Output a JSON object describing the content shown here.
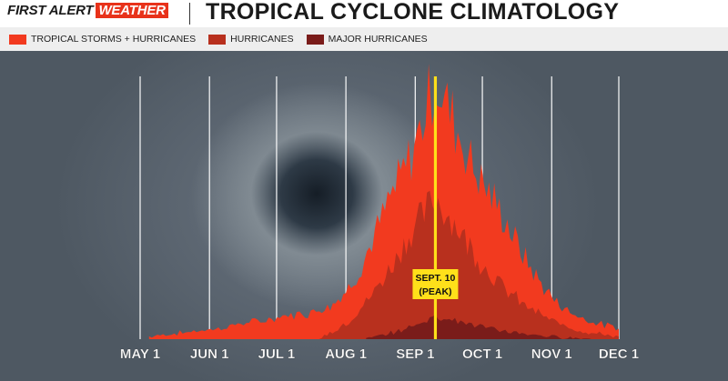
{
  "header": {
    "brand_first": "FIRST ALERT",
    "brand_second": "WEATHER",
    "title": "TROPICAL CYCLONE CLIMATOLOGY"
  },
  "legend": [
    {
      "label": "TROPICAL STORMS + HURRICANES",
      "color": "#f23a1f"
    },
    {
      "label": "HURRICANES",
      "color": "#b8301e"
    },
    {
      "label": "MAJOR HURRICANES",
      "color": "#7a1c1a"
    }
  ],
  "chart_data": {
    "type": "area",
    "title": "TROPICAL CYCLONE CLIMATOLOGY",
    "x_axis": "day of season",
    "tick_labels": [
      "MAY 1",
      "JUN 1",
      "JUL 1",
      "AUG 1",
      "SEP 1",
      "OCT 1",
      "NOV 1",
      "DEC 1"
    ],
    "x_range": [
      "May 1",
      "Dec 1"
    ],
    "y_axis": "relative frequency (unlabeled)",
    "grid": "vertical lines at month starts",
    "series": [
      {
        "name": "TROPICAL STORMS + HURRICANES",
        "color": "#f23a1f",
        "points": [
          [
            "May 5",
            1
          ],
          [
            "May 15",
            2
          ],
          [
            "May 25",
            3
          ],
          [
            "Jun 5",
            4
          ],
          [
            "Jun 15",
            6
          ],
          [
            "Jun 25",
            7
          ],
          [
            "Jul 5",
            9
          ],
          [
            "Jul 15",
            10
          ],
          [
            "Jul 25",
            13
          ],
          [
            "Aug 1",
            18
          ],
          [
            "Aug 8",
            28
          ],
          [
            "Aug 15",
            42
          ],
          [
            "Aug 22",
            56
          ],
          [
            "Aug 29",
            68
          ],
          [
            "Sep 3",
            80
          ],
          [
            "Sep 7",
            92
          ],
          [
            "Sep 10",
            100
          ],
          [
            "Sep 13",
            94
          ],
          [
            "Sep 20",
            80
          ],
          [
            "Sep 27",
            66
          ],
          [
            "Oct 4",
            56
          ],
          [
            "Oct 11",
            46
          ],
          [
            "Oct 18",
            34
          ],
          [
            "Oct 25",
            24
          ],
          [
            "Nov 1",
            16
          ],
          [
            "Nov 8",
            11
          ],
          [
            "Nov 15",
            8
          ],
          [
            "Nov 22",
            6
          ],
          [
            "Dec 1",
            4
          ]
        ]
      },
      {
        "name": "HURRICANES",
        "color": "#b8301e",
        "points": [
          [
            "Jul 20",
            0
          ],
          [
            "Aug 1",
            6
          ],
          [
            "Aug 10",
            14
          ],
          [
            "Aug 20",
            26
          ],
          [
            "Aug 28",
            38
          ],
          [
            "Sep 5",
            48
          ],
          [
            "Sep 10",
            54
          ],
          [
            "Sep 15",
            49
          ],
          [
            "Sep 22",
            40
          ],
          [
            "Sep 30",
            30
          ],
          [
            "Oct 10",
            20
          ],
          [
            "Oct 20",
            13
          ],
          [
            "Nov 1",
            7
          ],
          [
            "Nov 15",
            3
          ],
          [
            "Dec 1",
            1
          ]
        ]
      },
      {
        "name": "MAJOR HURRICANES",
        "color": "#7a1c1a",
        "points": [
          [
            "Aug 10",
            0
          ],
          [
            "Aug 20",
            2
          ],
          [
            "Aug 28",
            4
          ],
          [
            "Sep 5",
            7
          ],
          [
            "Sep 10",
            9
          ],
          [
            "Sep 15",
            8
          ],
          [
            "Sep 25",
            6
          ],
          [
            "Oct 5",
            4
          ],
          [
            "Oct 20",
            2
          ],
          [
            "Nov 1",
            1
          ],
          [
            "Nov 20",
            0
          ]
        ]
      }
    ],
    "annotation": {
      "date": "Sep 10",
      "line1": "SEPT. 10",
      "line2": "(PEAK)"
    }
  }
}
